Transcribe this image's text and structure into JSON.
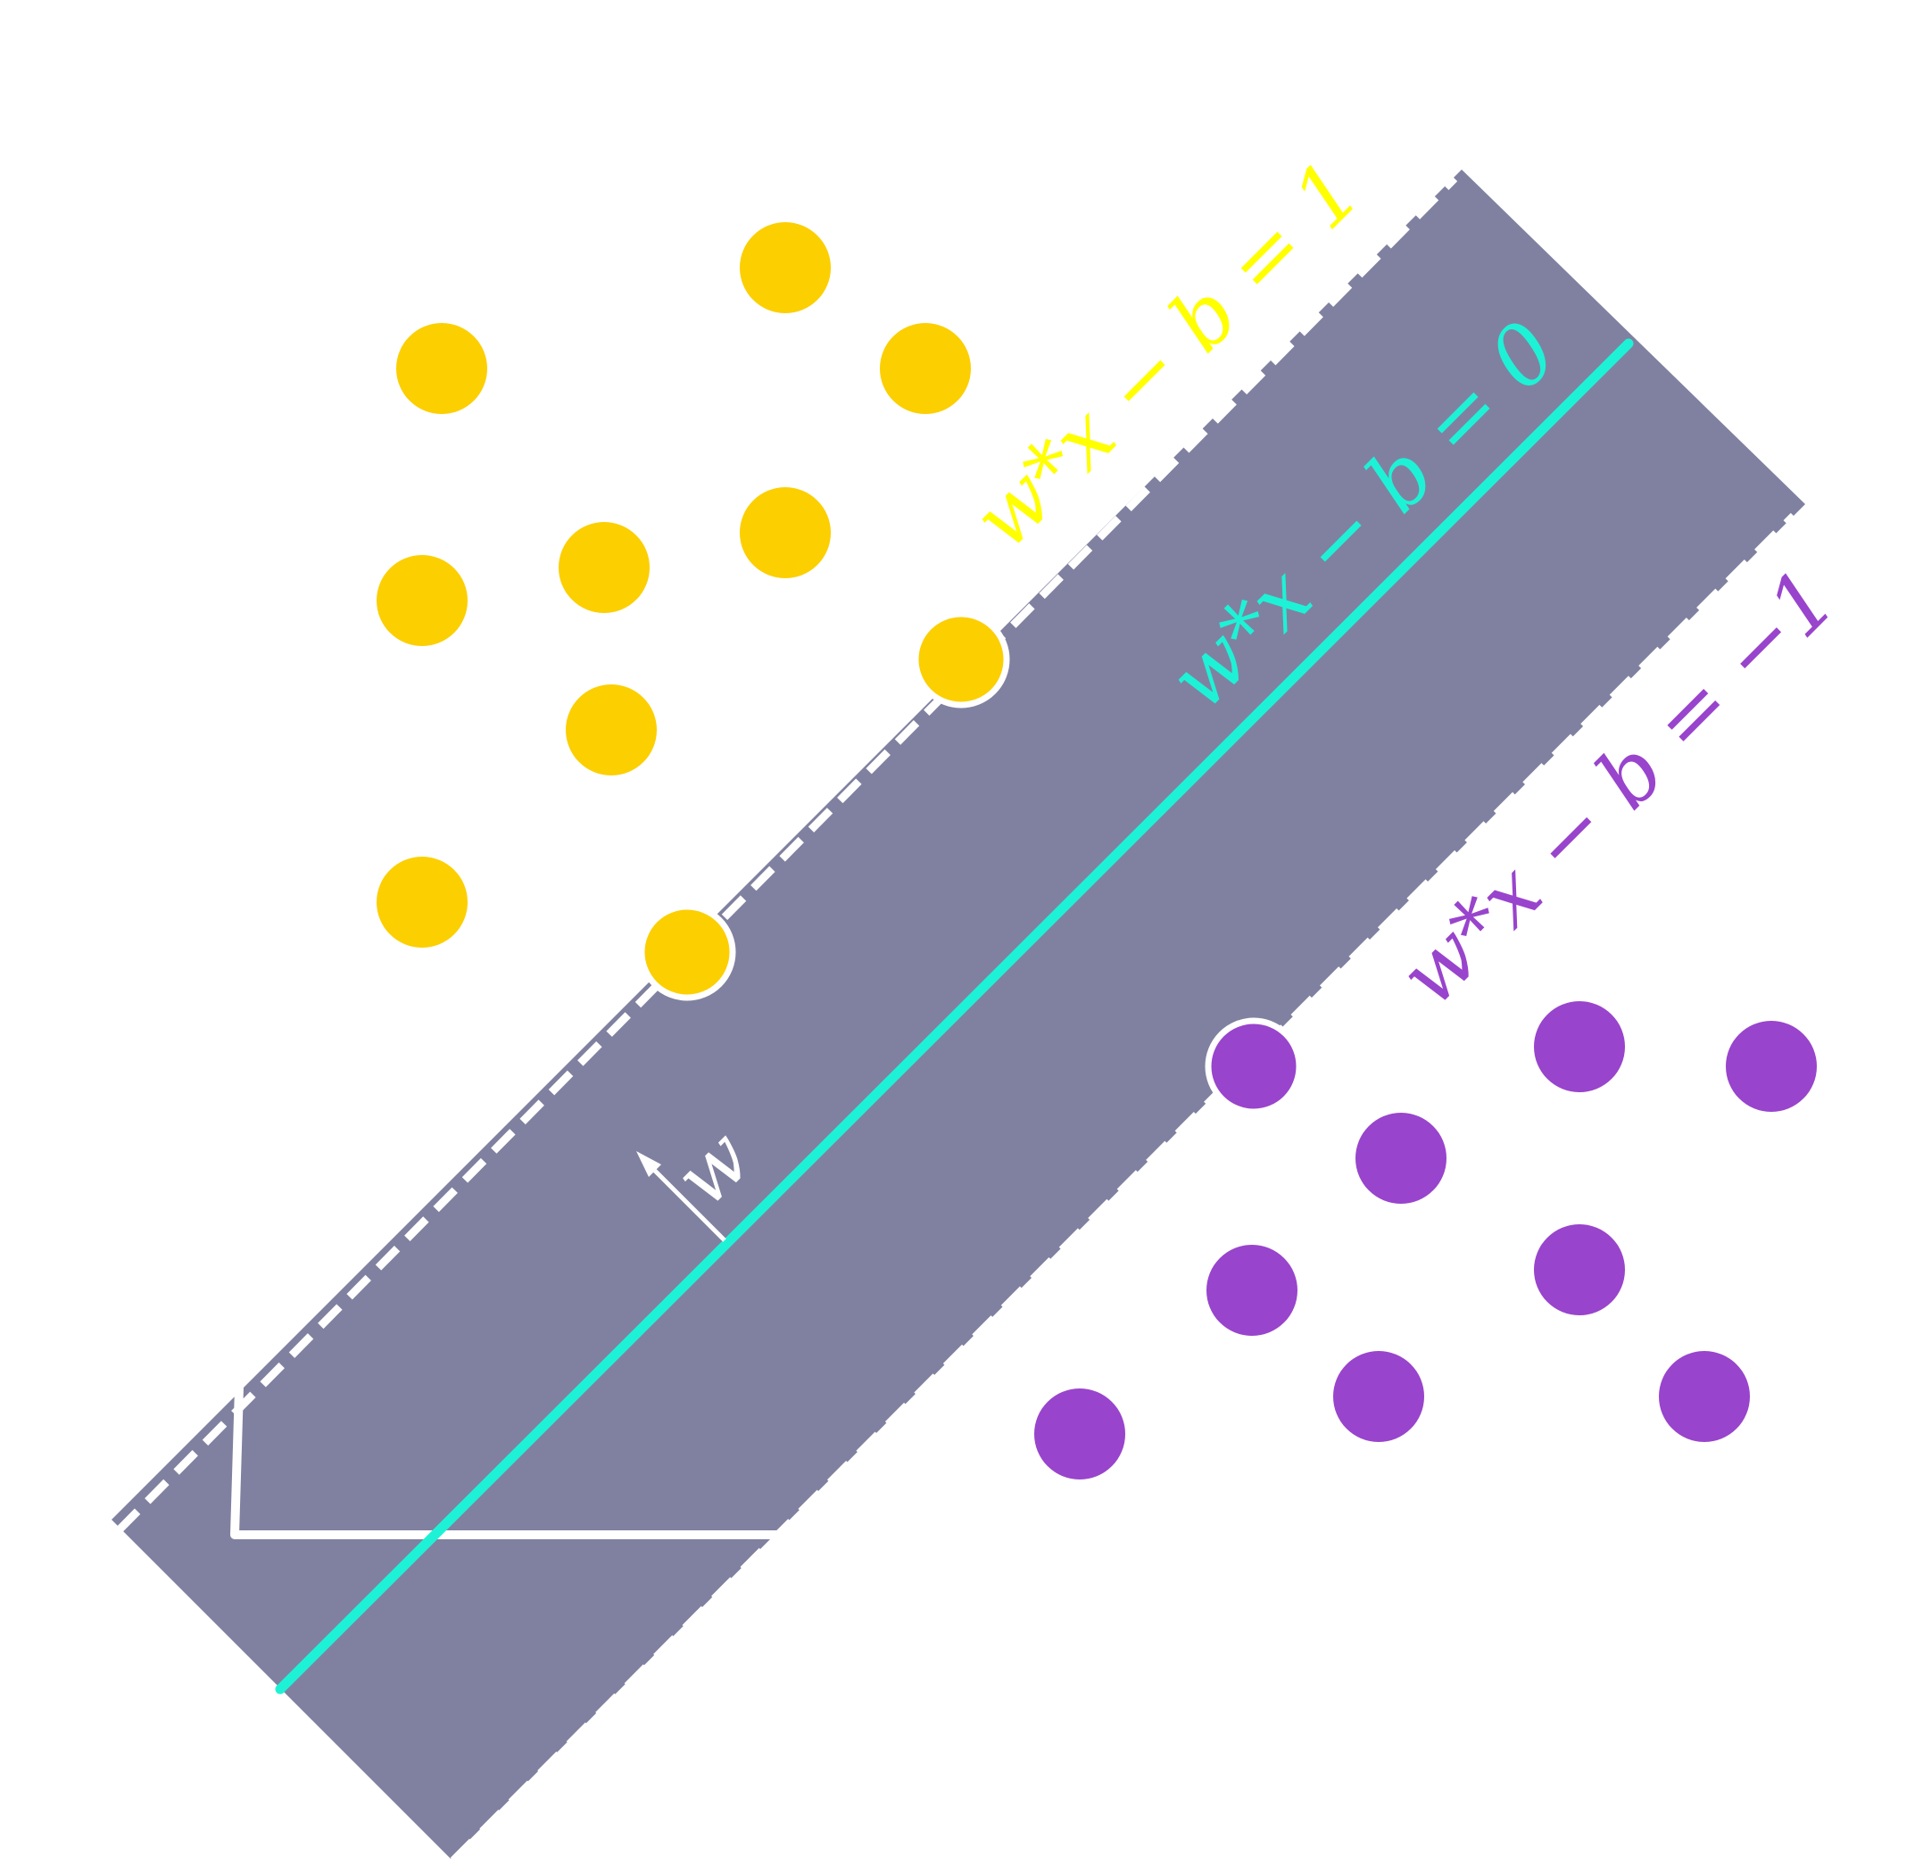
{
  "colors": {
    "background": "#ffffff",
    "margin_band": "#8081a0",
    "class_positive": "#fccf00",
    "class_negative": "#9944cc",
    "hyperplane": "#1ef2d6",
    "upper_label": "#ffff00",
    "lower_label": "#9944cc",
    "outline": "#ffffff"
  },
  "labels": {
    "upper_boundary": "w*x − b = 1",
    "decision_boundary": "w*x − b = 0",
    "lower_boundary": "w*x − b = −1",
    "normal_vector": "w"
  },
  "points": {
    "positive": [
      {
        "support_vector": false
      },
      {
        "support_vector": false
      },
      {
        "support_vector": false
      },
      {
        "support_vector": false
      },
      {
        "support_vector": false
      },
      {
        "support_vector": false
      },
      {
        "support_vector": false
      },
      {
        "support_vector": false
      },
      {
        "support_vector": true
      },
      {
        "support_vector": true
      }
    ],
    "negative": [
      {
        "support_vector": true
      },
      {
        "support_vector": false
      },
      {
        "support_vector": false
      },
      {
        "support_vector": false
      },
      {
        "support_vector": false
      },
      {
        "support_vector": false
      },
      {
        "support_vector": false
      },
      {
        "support_vector": false
      },
      {
        "support_vector": false
      }
    ]
  }
}
